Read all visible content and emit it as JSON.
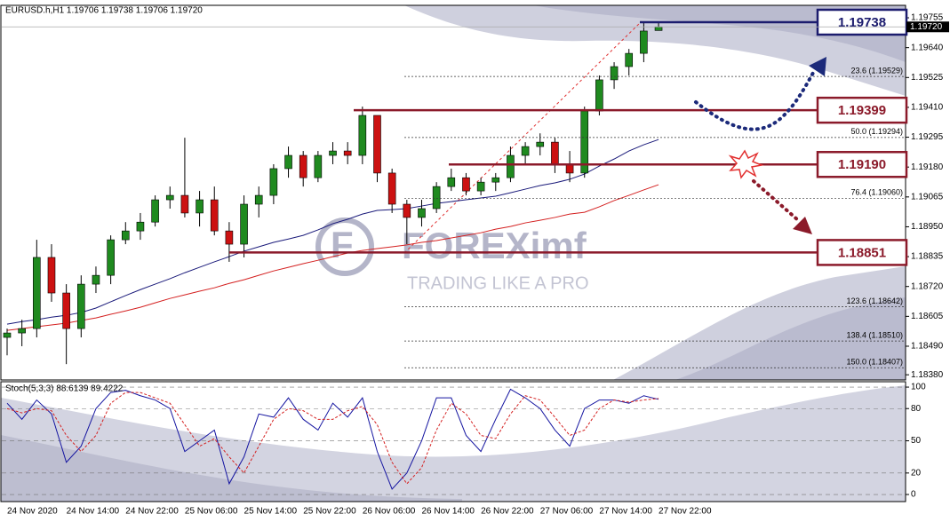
{
  "chart_data": [
    {
      "type": "candlestick",
      "title": "EURUSD.h,H1  1.19706 1.19738 1.19706 1.19720",
      "categories": [
        "24 Nov 2020",
        null,
        null,
        null,
        "24 Nov 14:00",
        null,
        null,
        null,
        "24 Nov 22:00",
        null,
        null,
        null,
        "25 Nov 06:00",
        null,
        null,
        null,
        "25 Nov 14:00",
        null,
        null,
        null,
        "25 Nov 22:00",
        null,
        null,
        null,
        "26 Nov 06:00",
        null,
        null,
        null,
        "26 Nov 14:00",
        null,
        null,
        null,
        "26 Nov 22:00",
        null,
        null,
        null,
        "27 Nov 06:00",
        null,
        null,
        null,
        "27 Nov 14:00",
        null,
        null,
        null,
        "27 Nov 22:00"
      ],
      "open": [
        1.18524,
        1.18541,
        1.18558,
        1.18832,
        1.18695,
        1.18558,
        1.18729,
        1.18763,
        1.189,
        1.18934,
        1.18968,
        1.19054,
        1.19071,
        1.19003,
        1.19054,
        1.18934,
        1.18883,
        1.19037,
        1.19071,
        1.19174,
        1.19225,
        1.19139,
        1.19225,
        1.19242,
        1.19225,
        1.19379,
        1.19157,
        1.19037,
        1.18986,
        1.1902,
        1.19105,
        1.19139,
        1.19088,
        1.19122,
        1.19139,
        1.19225,
        1.19259,
        1.19276,
        1.19191,
        1.19157,
        1.19396,
        1.19516,
        1.19567,
        1.19618,
        1.19706
      ],
      "high": [
        1.18558,
        1.18592,
        1.189,
        1.18883,
        1.18729,
        1.18763,
        1.18797,
        1.18917,
        1.18968,
        1.19003,
        1.19071,
        1.19105,
        1.19293,
        1.19088,
        1.19105,
        1.18968,
        1.19071,
        1.19105,
        1.19191,
        1.19259,
        1.19242,
        1.19242,
        1.19276,
        1.19276,
        1.19413,
        1.19379,
        1.19174,
        1.19054,
        1.19054,
        1.19122,
        1.19174,
        1.19157,
        1.19139,
        1.19157,
        1.19259,
        1.19276,
        1.1931,
        1.19293,
        1.19242,
        1.19413,
        1.19533,
        1.19584,
        1.19635,
        1.19738,
        1.19738
      ],
      "low": [
        1.18455,
        1.1849,
        1.18524,
        1.18661,
        1.18421,
        1.18524,
        1.18695,
        1.18729,
        1.18883,
        1.189,
        1.18951,
        1.1902,
        1.18986,
        1.18951,
        1.18917,
        1.18815,
        1.18832,
        1.18986,
        1.19037,
        1.19139,
        1.19105,
        1.19122,
        1.19191,
        1.19191,
        1.19191,
        1.19122,
        1.19003,
        1.18883,
        1.18951,
        1.19003,
        1.19088,
        1.19071,
        1.19071,
        1.19088,
        1.19122,
        1.19191,
        1.19225,
        1.19157,
        1.19122,
        1.19139,
        1.19379,
        1.19481,
        1.19533,
        1.19584,
        1.19706
      ],
      "close": [
        1.18541,
        1.18558,
        1.18832,
        1.18695,
        1.18558,
        1.18729,
        1.18763,
        1.189,
        1.18934,
        1.18968,
        1.19054,
        1.19071,
        1.19003,
        1.19054,
        1.18934,
        1.18883,
        1.19037,
        1.19071,
        1.19174,
        1.19225,
        1.19139,
        1.19225,
        1.19242,
        1.19225,
        1.19379,
        1.19157,
        1.19037,
        1.18986,
        1.1902,
        1.19105,
        1.19139,
        1.19088,
        1.19122,
        1.19139,
        1.19225,
        1.19259,
        1.19276,
        1.19191,
        1.19157,
        1.19396,
        1.19516,
        1.19567,
        1.19618,
        1.19704,
        1.1972
      ],
      "up_color": "#1f8a1f",
      "down_color": "#cc1111",
      "series": [
        {
          "color": "#1a1a7a",
          "values": [
            1.18575,
            1.18585,
            1.18592,
            1.18602,
            1.18609,
            1.1862,
            1.18637,
            1.18661,
            1.18685,
            1.18708,
            1.18729,
            1.1875,
            1.18773,
            1.18794,
            1.18815,
            1.18835,
            1.18856,
            1.18873,
            1.1889,
            1.18903,
            1.18917,
            1.18938,
            1.18962,
            1.18979,
            1.18999,
            1.19013,
            1.19016,
            1.1902,
            1.1903,
            1.1904,
            1.19047,
            1.19054,
            1.19061,
            1.19068,
            1.19081,
            1.19095,
            1.19109,
            1.19119,
            1.19133,
            1.19153,
            1.19184,
            1.19211,
            1.19242,
            1.19266,
            1.19286
          ]
        },
        {
          "color": "#d42020",
          "values": [
            1.18551,
            1.18558,
            1.18565,
            1.18572,
            1.18579,
            1.18589,
            1.18599,
            1.18613,
            1.18626,
            1.1864,
            1.18657,
            1.18674,
            1.18688,
            1.18702,
            1.18715,
            1.18732,
            1.18746,
            1.18763,
            1.1878,
            1.18794,
            1.18808,
            1.18821,
            1.18835,
            1.18849,
            1.18859,
            1.18866,
            1.18873,
            1.1888,
            1.1889,
            1.18897,
            1.18907,
            1.18917,
            1.18927,
            1.18941,
            1.18951,
            1.18965,
            1.18975,
            1.18986,
            1.18999,
            1.19006,
            1.19027,
            1.19051,
            1.19071,
            1.19092,
            1.19112
          ]
        }
      ],
      "ylim": [
        1.1836,
        1.19803
      ],
      "yticks": [
        1.19755,
        {
          "value": 1.1964,
          "label": "1.19640"
        },
        1.19525,
        {
          "value": 1.1941,
          "label": "1.19410"
        },
        1.19295,
        {
          "value": 1.1918,
          "label": "1.19180"
        },
        1.19065,
        {
          "value": 1.1895,
          "label": "1.18950"
        },
        1.18835,
        {
          "value": 1.1872,
          "label": "1.18720"
        },
        1.18605,
        {
          "value": 1.1849,
          "label": "1.18490"
        },
        {
          "value": 1.1838,
          "label": "1.18380"
        }
      ],
      "last_price": {
        "value": 1.1972,
        "label": "1.19720"
      },
      "levels": [
        {
          "price": 1.19738,
          "color": "#1c1c6e"
        },
        {
          "price": 1.19399,
          "color": "#8b1a2a"
        },
        {
          "price": 1.1919,
          "label": "1.19190",
          "color": "#8b1a2a"
        },
        {
          "price": 1.18851,
          "color": "#8b1a2a"
        }
      ],
      "fibs": [
        {
          "price": 1.19529,
          "label": "23.6 (1.19529)"
        },
        {
          "price": 1.19294,
          "label": "50.0 (1.19294)"
        },
        {
          "price": 1.1906,
          "label": "76.4 (1.19060)"
        },
        {
          "price": 1.18642,
          "label": "123.6 (1.18642)"
        },
        {
          "price": 1.1851,
          "label": "138.4 (1.18510)"
        },
        {
          "price": 1.18407,
          "label": "150.0 (1.18407)"
        }
      ]
    },
    {
      "type": "line",
      "title": "Stoch(5,3,3) 88.6139 89.4222",
      "series": [
        {
          "color": "#1414a0",
          "dashed": false,
          "values": [
            85,
            70,
            88,
            75,
            30,
            45,
            80,
            95,
            97,
            92,
            88,
            80,
            40,
            50,
            60,
            10,
            35,
            75,
            72,
            90,
            70,
            60,
            85,
            72,
            90,
            40,
            5,
            20,
            50,
            90,
            90,
            55,
            40,
            70,
            98,
            90,
            80,
            60,
            45,
            80,
            88,
            88,
            85,
            92,
            88.6139
          ]
        },
        {
          "color": "#d42020",
          "dashed": true,
          "values": [
            80,
            76,
            80,
            78,
            55,
            40,
            55,
            85,
            95,
            95,
            90,
            85,
            65,
            45,
            52,
            35,
            20,
            45,
            70,
            80,
            78,
            70,
            70,
            78,
            82,
            65,
            30,
            10,
            25,
            60,
            85,
            75,
            55,
            52,
            75,
            92,
            88,
            72,
            55,
            60,
            80,
            88,
            86,
            88,
            89.4222
          ]
        }
      ],
      "ylim": [
        -6.6,
        105
      ],
      "yticks": [
        100,
        80,
        50,
        20,
        0
      ],
      "grid": true
    }
  ],
  "watermark": {
    "brand": "FOREXimf",
    "tagline": "TRADING LIKE A PRO"
  }
}
